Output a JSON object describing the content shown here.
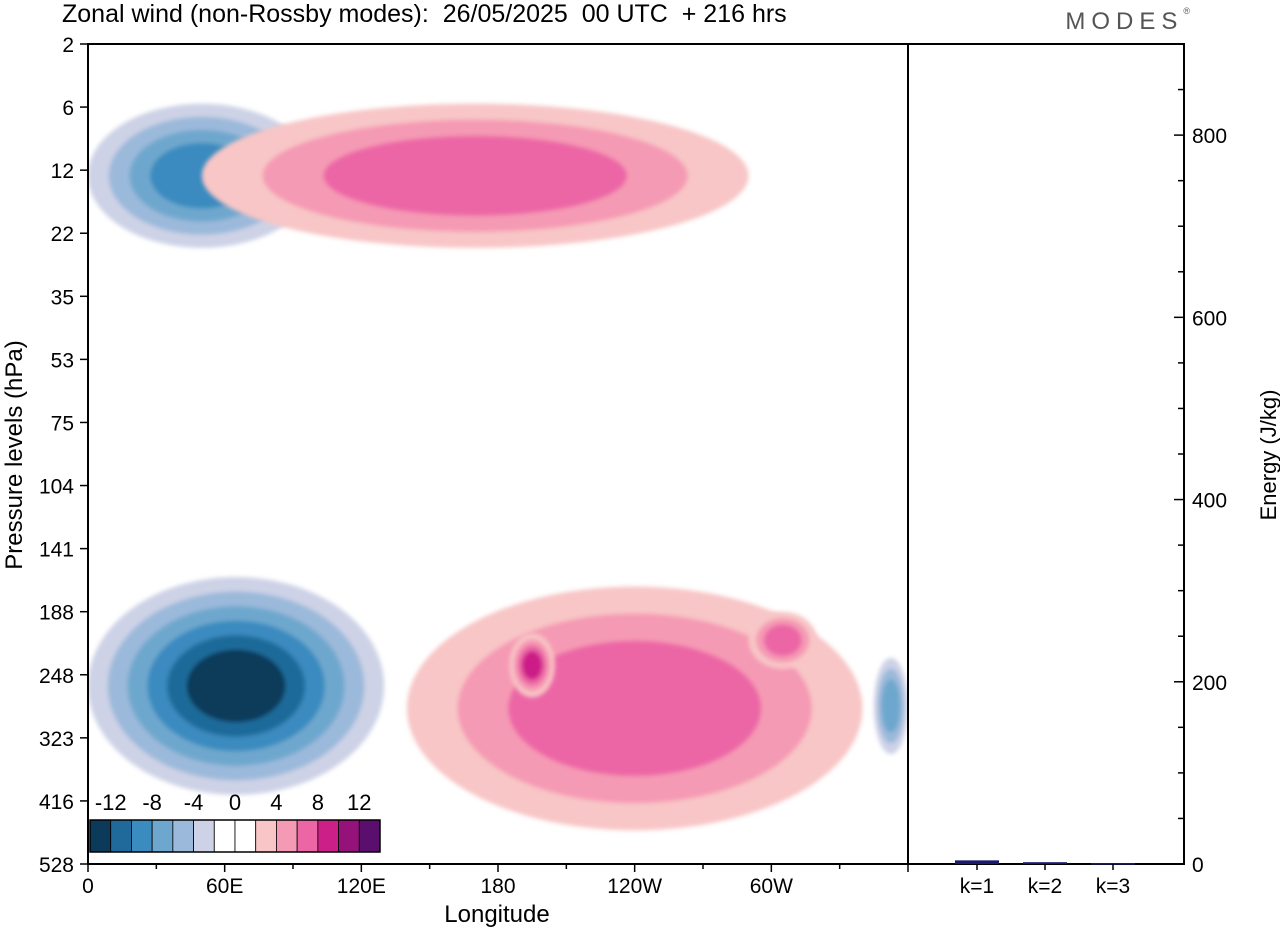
{
  "header": {
    "title": "Zonal wind (non-Rossby modes):  26/05/2025  00 UTC  + 216 hrs",
    "brand": "MODES",
    "brand_mark": "®"
  },
  "chart_data": [
    {
      "type": "heatmap",
      "title": "Zonal wind (non-Rossby modes):  26/05/2025  00 UTC  + 216 hrs",
      "xlabel": "Longitude",
      "ylabel": "Pressure levels (hPa)",
      "x_ticks": [
        "0",
        "60E",
        "120E",
        "180",
        "120W",
        "60W"
      ],
      "y_ticks": [
        "2",
        "6",
        "12",
        "22",
        "35",
        "53",
        "75",
        "104",
        "141",
        "188",
        "248",
        "323",
        "416",
        "528"
      ],
      "y_inverted": true,
      "colorbar": {
        "tick_labels": [
          "-12",
          "-8",
          "-4",
          "0",
          "4",
          "8",
          "12"
        ],
        "levels": [
          -14,
          -12,
          -10,
          -8,
          -6,
          -4,
          -2,
          0,
          2,
          4,
          6,
          8,
          10,
          12,
          14
        ],
        "colors": [
          "#0c3a5a",
          "#1f6a9a",
          "#3a8bc0",
          "#6ea7cd",
          "#9bb9da",
          "#cdd2e6",
          "#ffffff",
          "#ffffff",
          "#f8c6c6",
          "#f59ab4",
          "#ec66a6",
          "#cc1f88",
          "#95127a",
          "#5a0e6e"
        ]
      },
      "features": [
        {
          "name": "upper stratosphere easterly band",
          "sign": "negative",
          "lon_range": [
            0,
            100
          ],
          "p_range": [
            3,
            8
          ],
          "peak": -10
        },
        {
          "name": "upper stratosphere westerly streaks",
          "sign": "positive",
          "lon_range": [
            50,
            290
          ],
          "p_range": [
            3,
            8
          ],
          "peak": 8
        },
        {
          "name": "tropopause easterly jet",
          "sign": "negative",
          "lon_range": [
            0,
            130
          ],
          "p_range": [
            75,
            330
          ],
          "peak": -14
        },
        {
          "name": "tropopause westerly anomaly",
          "sign": "positive",
          "lon_range": [
            140,
            340
          ],
          "p_range": [
            80,
            420
          ],
          "peak": 8
        },
        {
          "name": "dateline westerly core",
          "sign": "positive",
          "lon_range": [
            185,
            205
          ],
          "p_range": [
            110,
            170
          ],
          "peak": 10
        },
        {
          "name": "eastern westerly core",
          "sign": "positive",
          "lon_range": [
            290,
            320
          ],
          "p_range": [
            95,
            140
          ],
          "peak": 8
        },
        {
          "name": "western boundary easterly",
          "sign": "negative",
          "lon_range": [
            345,
            360
          ],
          "p_range": [
            130,
            250
          ],
          "peak": -8
        }
      ]
    },
    {
      "type": "bar",
      "categories": [
        "k=1",
        "k=2",
        "k=3"
      ],
      "values": [
        4,
        2,
        1
      ],
      "ylabel": "Energy (J/kg)",
      "ylim": [
        0,
        900
      ],
      "y_ticks": [
        "0",
        "200",
        "400",
        "600",
        "800"
      ],
      "color": "#1a1a6e"
    }
  ]
}
